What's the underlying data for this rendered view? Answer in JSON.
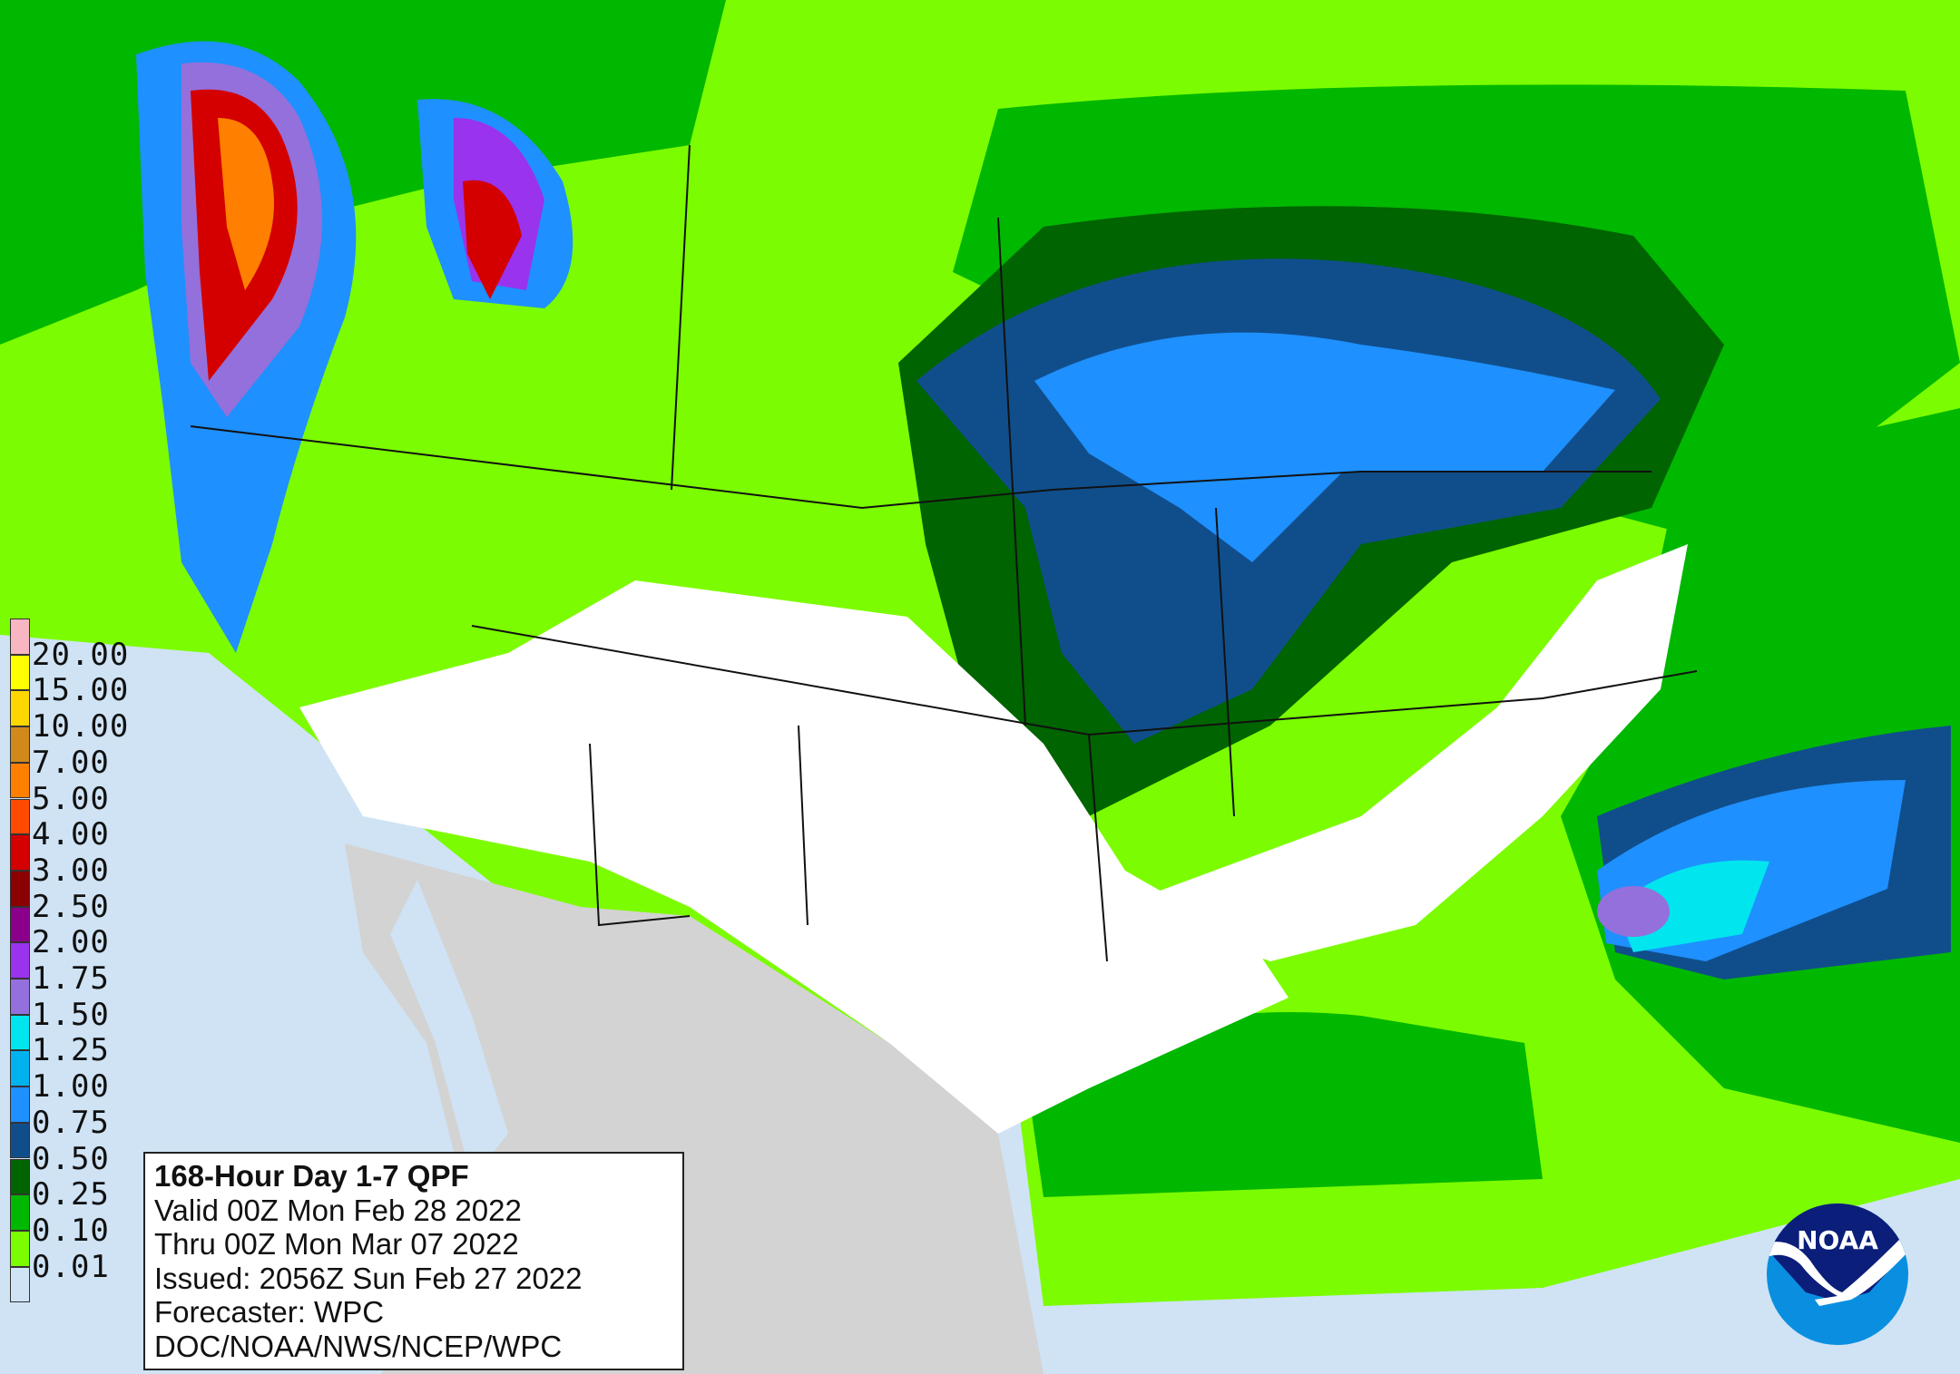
{
  "info_box": {
    "title": "168-Hour Day 1-7 QPF",
    "valid": "Valid 00Z Mon Feb 28 2022",
    "thru": "Thru 00Z Mon Mar 07 2022",
    "issued": "Issued: 2056Z Sun Feb 27 2022",
    "forecaster": "Forecaster: WPC",
    "agency": "DOC/NOAA/NWS/NCEP/WPC"
  },
  "legend": {
    "labels": [
      "20.00",
      "15.00",
      "10.00",
      "7.00",
      "5.00",
      "4.00",
      "3.00",
      "2.50",
      "2.00",
      "1.75",
      "1.50",
      "1.25",
      "1.00",
      "0.75",
      "0.50",
      "0.25",
      "0.10",
      "0.01"
    ],
    "colors": [
      "#f7b6c2",
      "#ffff00",
      "#ffd700",
      "#d2891c",
      "#ff8000",
      "#ff4a00",
      "#d40000",
      "#8b0000",
      "#8b008b",
      "#9933ee",
      "#9370db",
      "#00e5ee",
      "#00b2ee",
      "#1e90ff",
      "#104e8b",
      "#006400",
      "#00b800",
      "#7cfc00",
      "#cfe3f5"
    ]
  },
  "map_colors": {
    "ocean": "#cfe3f5",
    "non_us_land": "#d3d3d3",
    "no_precip": "#ffffff"
  },
  "logo": {
    "text": "NOAA",
    "icon": "noaa-logo"
  }
}
